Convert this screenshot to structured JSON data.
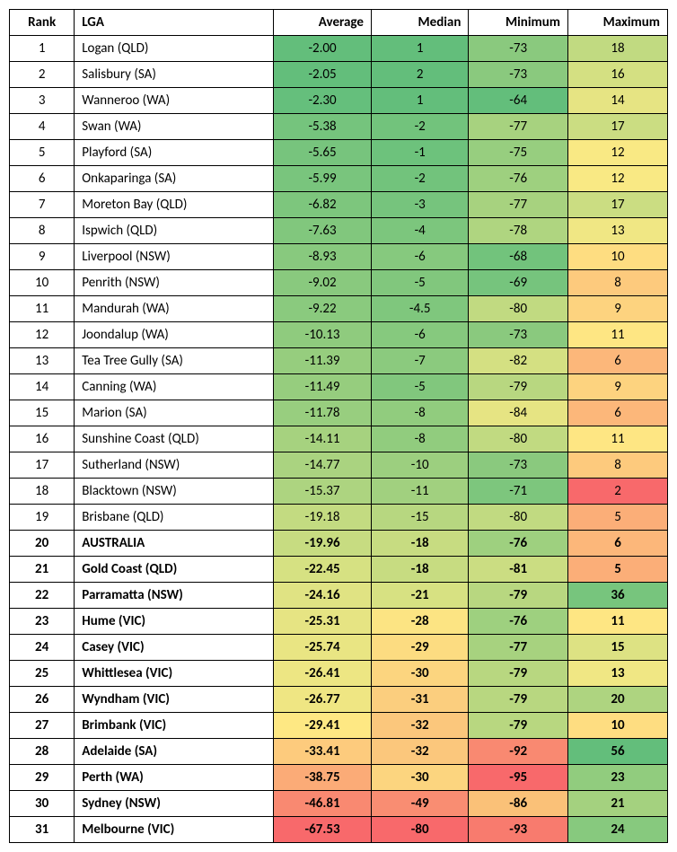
{
  "columns": [
    "Rank",
    "LGA",
    "Average",
    "Median",
    "Minimum",
    "Maximum"
  ],
  "rows": [
    {
      "rank": "1",
      "lga": "Logan (QLD)",
      "bold": false,
      "avg": {
        "v": "-2.00",
        "c": "#63be7b"
      },
      "med": {
        "v": "1",
        "c": "#63be7b"
      },
      "min": {
        "v": "-73",
        "c": "#8ac97e"
      },
      "max": {
        "v": "18",
        "c": "#c1da81"
      }
    },
    {
      "rank": "2",
      "lga": "Salisbury (SA)",
      "bold": false,
      "avg": {
        "v": "-2.05",
        "c": "#63be7b"
      },
      "med": {
        "v": "2",
        "c": "#63be7b"
      },
      "min": {
        "v": "-73",
        "c": "#8ac97e"
      },
      "max": {
        "v": "16",
        "c": "#d4e082"
      }
    },
    {
      "rank": "3",
      "lga": "Wanneroo (WA)",
      "bold": false,
      "avg": {
        "v": "-2.30",
        "c": "#65bf7c"
      },
      "med": {
        "v": "1",
        "c": "#63be7b"
      },
      "min": {
        "v": "-64",
        "c": "#63be7b"
      },
      "max": {
        "v": "14",
        "c": "#e6e483"
      }
    },
    {
      "rank": "4",
      "lga": "Swan (WA)",
      "bold": false,
      "avg": {
        "v": "-5.38",
        "c": "#75c47d"
      },
      "med": {
        "v": "-2",
        "c": "#72c37c"
      },
      "min": {
        "v": "-77",
        "c": "#a7d27f"
      },
      "max": {
        "v": "17",
        "c": "#cbdd82"
      }
    },
    {
      "rank": "5",
      "lga": "Playford (SA)",
      "bold": false,
      "avg": {
        "v": "-5.65",
        "c": "#77c47d"
      },
      "med": {
        "v": "-1",
        "c": "#6dc27c"
      },
      "min": {
        "v": "-75",
        "c": "#97ce7f"
      },
      "max": {
        "v": "12",
        "c": "#f9e984"
      }
    },
    {
      "rank": "6",
      "lga": "Onkaparinga (SA)",
      "bold": false,
      "avg": {
        "v": "-5.99",
        "c": "#79c57d"
      },
      "med": {
        "v": "-2",
        "c": "#72c37c"
      },
      "min": {
        "v": "-76",
        "c": "#9ed07f"
      },
      "max": {
        "v": "12",
        "c": "#f9e984"
      }
    },
    {
      "rank": "7",
      "lga": "Moreton Bay (QLD)",
      "bold": false,
      "avg": {
        "v": "-6.82",
        "c": "#7dc67d"
      },
      "med": {
        "v": "-3",
        "c": "#76c47d"
      },
      "min": {
        "v": "-77",
        "c": "#a7d27f"
      },
      "max": {
        "v": "17",
        "c": "#cbdd82"
      }
    },
    {
      "rank": "8",
      "lga": "Ispwich (QLD)",
      "bold": false,
      "avg": {
        "v": "-7.63",
        "c": "#81c77d"
      },
      "med": {
        "v": "-4",
        "c": "#7cc67d"
      },
      "min": {
        "v": "-78",
        "c": "#afd580"
      },
      "max": {
        "v": "13",
        "c": "#f0e784"
      }
    },
    {
      "rank": "9",
      "lga": "Liverpool (NSW)",
      "bold": false,
      "avg": {
        "v": "-8.93",
        "c": "#88c97e"
      },
      "med": {
        "v": "-6",
        "c": "#86c97e"
      },
      "min": {
        "v": "-68",
        "c": "#72c37c"
      },
      "max": {
        "v": "10",
        "c": "#fedd81"
      }
    },
    {
      "rank": "10",
      "lga": "Penrith (NSW)",
      "bold": false,
      "avg": {
        "v": "-9.02",
        "c": "#89c97e"
      },
      "med": {
        "v": "-5",
        "c": "#81c77d"
      },
      "min": {
        "v": "-69",
        "c": "#76c47d"
      },
      "max": {
        "v": "8",
        "c": "#fdca7d"
      }
    },
    {
      "rank": "11",
      "lga": "Mandurah (WA)",
      "bold": false,
      "avg": {
        "v": "-9.22",
        "c": "#8aca7e"
      },
      "med": {
        "v": "-4.5",
        "c": "#7fc77d"
      },
      "min": {
        "v": "-80",
        "c": "#c1da81"
      },
      "max": {
        "v": "9",
        "c": "#fdd37f"
      }
    },
    {
      "rank": "12",
      "lga": "Joondalup (WA)",
      "bold": false,
      "avg": {
        "v": "-10.13",
        "c": "#8fcb7e"
      },
      "med": {
        "v": "-6",
        "c": "#86c97e"
      },
      "min": {
        "v": "-73",
        "c": "#8ac97e"
      },
      "max": {
        "v": "11",
        "c": "#fee683"
      }
    },
    {
      "rank": "13",
      "lga": "Tea Tree Gully (SA)",
      "bold": false,
      "avg": {
        "v": "-11.39",
        "c": "#96cd7e"
      },
      "med": {
        "v": "-7",
        "c": "#8bca7e"
      },
      "min": {
        "v": "-82",
        "c": "#d4e082"
      },
      "max": {
        "v": "6",
        "c": "#fcb77a"
      }
    },
    {
      "rank": "14",
      "lga": "Canning (WA)",
      "bold": false,
      "avg": {
        "v": "-11.49",
        "c": "#96cd7e"
      },
      "med": {
        "v": "-5",
        "c": "#81c77d"
      },
      "min": {
        "v": "-79",
        "c": "#b8d780"
      },
      "max": {
        "v": "9",
        "c": "#fdd37f"
      }
    },
    {
      "rank": "15",
      "lga": "Marion (SA)",
      "bold": false,
      "avg": {
        "v": "-11.78",
        "c": "#98ce7f"
      },
      "med": {
        "v": "-8",
        "c": "#91cc7e"
      },
      "min": {
        "v": "-84",
        "c": "#e6e483"
      },
      "max": {
        "v": "6",
        "c": "#fcb77a"
      }
    },
    {
      "rank": "16",
      "lga": "Sunshine Coast (QLD)",
      "bold": false,
      "avg": {
        "v": "-14.11",
        "c": "#a6d27f"
      },
      "med": {
        "v": "-8",
        "c": "#91cc7e"
      },
      "min": {
        "v": "-80",
        "c": "#c1da81"
      },
      "max": {
        "v": "11",
        "c": "#fee683"
      }
    },
    {
      "rank": "17",
      "lga": "Sutherland (NSW)",
      "bold": false,
      "avg": {
        "v": "-14.77",
        "c": "#aad380"
      },
      "med": {
        "v": "-10",
        "c": "#9ccf7f"
      },
      "min": {
        "v": "-73",
        "c": "#8ac97e"
      },
      "max": {
        "v": "8",
        "c": "#fdca7d"
      }
    },
    {
      "rank": "18",
      "lga": "Blacktown (NSW)",
      "bold": false,
      "avg": {
        "v": "-15.37",
        "c": "#add480"
      },
      "med": {
        "v": "-11",
        "c": "#a1d07f"
      },
      "min": {
        "v": "-71",
        "c": "#7dc67d"
      },
      "max": {
        "v": "2",
        "c": "#f8696b"
      }
    },
    {
      "rank": "19",
      "lga": "Brisbane (QLD)",
      "bold": false,
      "avg": {
        "v": "-19.18",
        "c": "#c3db81"
      },
      "med": {
        "v": "-15",
        "c": "#b7d780"
      },
      "min": {
        "v": "-80",
        "c": "#c1da81"
      },
      "max": {
        "v": "5",
        "c": "#fbae78"
      }
    },
    {
      "rank": "20",
      "lga": "AUSTRALIA",
      "bold": true,
      "avg": {
        "v": "-19.96",
        "c": "#c7dc81"
      },
      "med": {
        "v": "-18",
        "c": "#c7dc81"
      },
      "min": {
        "v": "-76",
        "c": "#9ed07f"
      },
      "max": {
        "v": "6",
        "c": "#fcb77a"
      }
    },
    {
      "rank": "21",
      "lga": "Gold Coast (QLD)",
      "bold": true,
      "avg": {
        "v": "-22.45",
        "c": "#d6e182"
      },
      "med": {
        "v": "-18",
        "c": "#c7dc81"
      },
      "min": {
        "v": "-81",
        "c": "#cbdd82"
      },
      "max": {
        "v": "5",
        "c": "#fbae78"
      }
    },
    {
      "rank": "22",
      "lga": "Parramatta (NSW)",
      "bold": true,
      "avg": {
        "v": "-24.16",
        "c": "#e0e383"
      },
      "med": {
        "v": "-21",
        "c": "#d7e182"
      },
      "min": {
        "v": "-79",
        "c": "#b8d780"
      },
      "max": {
        "v": "36",
        "c": "#77c57d"
      }
    },
    {
      "rank": "23",
      "lga": "Hume (VIC)",
      "bold": true,
      "avg": {
        "v": "-25.31",
        "c": "#e6e483"
      },
      "med": {
        "v": "-28",
        "c": "#fce483"
      },
      "min": {
        "v": "-76",
        "c": "#9ed07f"
      },
      "max": {
        "v": "11",
        "c": "#fee683"
      }
    },
    {
      "rank": "24",
      "lga": "Casey (VIC)",
      "bold": true,
      "avg": {
        "v": "-25.74",
        "c": "#e9e583"
      },
      "med": {
        "v": "-29",
        "c": "#fcdc81"
      },
      "min": {
        "v": "-77",
        "c": "#a7d27f"
      },
      "max": {
        "v": "15",
        "c": "#dde283"
      }
    },
    {
      "rank": "25",
      "lga": "Whittlesea (VIC)",
      "bold": true,
      "avg": {
        "v": "-26.41",
        "c": "#ede683"
      },
      "med": {
        "v": "-30",
        "c": "#fcd57f"
      },
      "min": {
        "v": "-79",
        "c": "#b8d780"
      },
      "max": {
        "v": "13",
        "c": "#f0e784"
      }
    },
    {
      "rank": "26",
      "lga": "Wyndham (VIC)",
      "bold": true,
      "avg": {
        "v": "-26.77",
        "c": "#efe683"
      },
      "med": {
        "v": "-31",
        "c": "#fbce7e"
      },
      "min": {
        "v": "-79",
        "c": "#b8d780"
      },
      "max": {
        "v": "20",
        "c": "#aed480"
      }
    },
    {
      "rank": "27",
      "lga": "Brimbank (VIC)",
      "bold": true,
      "avg": {
        "v": "-29.41",
        "c": "#fee883"
      },
      "med": {
        "v": "-32",
        "c": "#fbc77c"
      },
      "min": {
        "v": "-79",
        "c": "#b8d780"
      },
      "max": {
        "v": "10",
        "c": "#fedd81"
      }
    },
    {
      "rank": "28",
      "lga": "Adelaide (SA)",
      "bold": true,
      "avg": {
        "v": "-33.41",
        "c": "#fdcb7d"
      },
      "med": {
        "v": "-32",
        "c": "#fbc77c"
      },
      "min": {
        "v": "-92",
        "c": "#f98971"
      },
      "max": {
        "v": "56",
        "c": "#63be7b"
      }
    },
    {
      "rank": "29",
      "lga": "Perth (WA)",
      "bold": true,
      "avg": {
        "v": "-38.75",
        "c": "#fbab77"
      },
      "med": {
        "v": "-30",
        "c": "#fcd57f"
      },
      "min": {
        "v": "-95",
        "c": "#f8696b"
      },
      "max": {
        "v": "23",
        "c": "#91cc7e"
      }
    },
    {
      "rank": "30",
      "lga": "Sydney (NSW)",
      "bold": true,
      "avg": {
        "v": "-46.81",
        "c": "#f98971"
      },
      "med": {
        "v": "-49",
        "c": "#f98d72"
      },
      "min": {
        "v": "-86",
        "c": "#fac178"
      },
      "max": {
        "v": "21",
        "c": "#a4d17f"
      }
    },
    {
      "rank": "31",
      "lga": "Melbourne (VIC)",
      "bold": true,
      "avg": {
        "v": "-67.53",
        "c": "#f8696b"
      },
      "med": {
        "v": "-80",
        "c": "#f8696b"
      },
      "min": {
        "v": "-93",
        "c": "#f87b6e"
      },
      "max": {
        "v": "24",
        "c": "#87c97e"
      }
    }
  ]
}
